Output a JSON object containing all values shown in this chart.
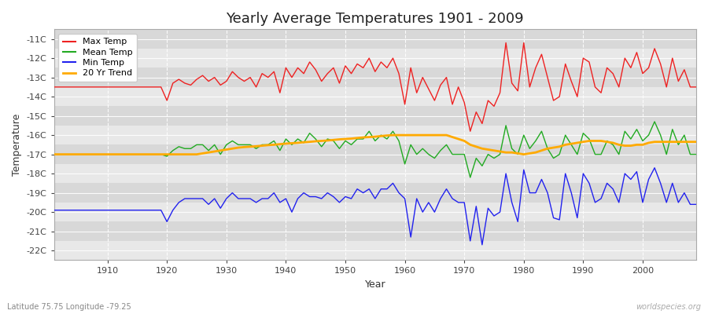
{
  "title": "Yearly Average Temperatures 1901 - 2009",
  "xlabel": "Year",
  "ylabel": "Temperature",
  "lat_lon_text": "Latitude 75.75 Longitude -79.25",
  "watermark": "worldspecies.org",
  "ylim": [
    -22.5,
    -10.5
  ],
  "yticks": [
    -22,
    -21,
    -20,
    -19,
    -18,
    -17,
    -16,
    -15,
    -14,
    -13,
    -12,
    -11
  ],
  "ytick_labels": [
    "-22C",
    "-21C",
    "-20C",
    "-19C",
    "-18C",
    "-17C",
    "-16C",
    "-15C",
    "-14C",
    "-13C",
    "-12C",
    "-11C"
  ],
  "xlim": [
    1901,
    2009
  ],
  "band_colors": [
    "#e8e8e8",
    "#d8d8d8"
  ],
  "line_colors": {
    "max": "#ee2222",
    "mean": "#22aa22",
    "min": "#2222ee",
    "trend": "#ffaa00"
  },
  "legend_labels": [
    "Max Temp",
    "Mean Temp",
    "Min Temp",
    "20 Yr Trend"
  ],
  "years": [
    1901,
    1902,
    1903,
    1904,
    1905,
    1906,
    1907,
    1908,
    1909,
    1910,
    1911,
    1912,
    1913,
    1914,
    1915,
    1916,
    1917,
    1918,
    1919,
    1920,
    1921,
    1922,
    1923,
    1924,
    1925,
    1926,
    1927,
    1928,
    1929,
    1930,
    1931,
    1932,
    1933,
    1934,
    1935,
    1936,
    1937,
    1938,
    1939,
    1940,
    1941,
    1942,
    1943,
    1944,
    1945,
    1946,
    1947,
    1948,
    1949,
    1950,
    1951,
    1952,
    1953,
    1954,
    1955,
    1956,
    1957,
    1958,
    1959,
    1960,
    1961,
    1962,
    1963,
    1964,
    1965,
    1966,
    1967,
    1968,
    1969,
    1970,
    1971,
    1972,
    1973,
    1974,
    1975,
    1976,
    1977,
    1978,
    1979,
    1980,
    1981,
    1982,
    1983,
    1984,
    1985,
    1986,
    1987,
    1988,
    1989,
    1990,
    1991,
    1992,
    1993,
    1994,
    1995,
    1996,
    1997,
    1998,
    1999,
    2000,
    2001,
    2002,
    2003,
    2004,
    2005,
    2006,
    2007,
    2008,
    2009
  ],
  "max_temp": [
    -13.5,
    -13.5,
    -13.5,
    -13.5,
    -13.5,
    -13.5,
    -13.5,
    -13.5,
    -13.5,
    -13.5,
    -13.5,
    -13.5,
    -13.5,
    -13.5,
    -13.5,
    -13.5,
    -13.5,
    -13.5,
    -13.5,
    -14.2,
    -13.3,
    -13.1,
    -13.3,
    -13.4,
    -13.1,
    -12.9,
    -13.2,
    -13.0,
    -13.4,
    -13.2,
    -12.7,
    -13.0,
    -13.2,
    -13.0,
    -13.5,
    -12.8,
    -13.0,
    -12.7,
    -13.8,
    -12.5,
    -13.0,
    -12.5,
    -12.8,
    -12.2,
    -12.6,
    -13.2,
    -12.8,
    -12.5,
    -13.3,
    -12.4,
    -12.8,
    -12.3,
    -12.5,
    -12.0,
    -12.7,
    -12.2,
    -12.5,
    -12.0,
    -12.8,
    -14.4,
    -12.5,
    -13.8,
    -13.0,
    -13.6,
    -14.2,
    -13.4,
    -13.0,
    -14.4,
    -13.5,
    -14.3,
    -15.8,
    -14.8,
    -15.4,
    -14.2,
    -14.5,
    -13.8,
    -11.2,
    -13.3,
    -13.7,
    -11.2,
    -13.5,
    -12.5,
    -11.8,
    -13.0,
    -14.2,
    -14.0,
    -12.3,
    -13.2,
    -14.0,
    -12.0,
    -12.2,
    -13.5,
    -13.8,
    -12.5,
    -12.8,
    -13.5,
    -12.0,
    -12.5,
    -11.7,
    -12.8,
    -12.5,
    -11.5,
    -12.3,
    -13.5,
    -12.0,
    -13.2,
    -12.6,
    -13.5,
    -13.5
  ],
  "mean_temp": [
    -17.0,
    -17.0,
    -17.0,
    -17.0,
    -17.0,
    -17.0,
    -17.0,
    -17.0,
    -17.0,
    -17.0,
    -17.0,
    -17.0,
    -17.0,
    -17.0,
    -17.0,
    -17.0,
    -17.0,
    -17.0,
    -17.0,
    -17.1,
    -16.8,
    -16.6,
    -16.7,
    -16.7,
    -16.5,
    -16.5,
    -16.8,
    -16.5,
    -17.0,
    -16.5,
    -16.3,
    -16.5,
    -16.5,
    -16.5,
    -16.7,
    -16.5,
    -16.5,
    -16.3,
    -16.8,
    -16.2,
    -16.5,
    -16.2,
    -16.4,
    -15.9,
    -16.2,
    -16.6,
    -16.2,
    -16.3,
    -16.7,
    -16.3,
    -16.5,
    -16.2,
    -16.2,
    -15.8,
    -16.3,
    -16.0,
    -16.2,
    -15.8,
    -16.3,
    -17.5,
    -16.5,
    -17.0,
    -16.7,
    -17.0,
    -17.2,
    -16.8,
    -16.5,
    -17.0,
    -17.0,
    -17.0,
    -18.2,
    -17.2,
    -17.6,
    -17.0,
    -17.2,
    -17.0,
    -15.5,
    -16.7,
    -17.0,
    -16.0,
    -16.7,
    -16.3,
    -15.8,
    -16.7,
    -17.2,
    -17.0,
    -16.0,
    -16.5,
    -17.0,
    -15.9,
    -16.2,
    -17.0,
    -17.0,
    -16.3,
    -16.5,
    -17.0,
    -15.8,
    -16.2,
    -15.7,
    -16.3,
    -16.0,
    -15.3,
    -16.0,
    -17.0,
    -15.7,
    -16.5,
    -16.0,
    -17.0,
    -17.0
  ],
  "min_temp": [
    -19.9,
    -19.9,
    -19.9,
    -19.9,
    -19.9,
    -19.9,
    -19.9,
    -19.9,
    -19.9,
    -19.9,
    -19.9,
    -19.9,
    -19.9,
    -19.9,
    -19.9,
    -19.9,
    -19.9,
    -19.9,
    -19.9,
    -20.5,
    -19.9,
    -19.5,
    -19.3,
    -19.3,
    -19.3,
    -19.3,
    -19.6,
    -19.3,
    -19.8,
    -19.3,
    -19.0,
    -19.3,
    -19.3,
    -19.3,
    -19.5,
    -19.3,
    -19.3,
    -19.0,
    -19.5,
    -19.3,
    -20.0,
    -19.3,
    -19.0,
    -19.2,
    -19.2,
    -19.3,
    -19.0,
    -19.2,
    -19.5,
    -19.2,
    -19.3,
    -18.8,
    -19.0,
    -18.8,
    -19.3,
    -18.8,
    -18.8,
    -18.5,
    -19.0,
    -19.3,
    -21.3,
    -19.3,
    -20.0,
    -19.5,
    -20.0,
    -19.3,
    -18.8,
    -19.3,
    -19.5,
    -19.5,
    -21.5,
    -19.7,
    -21.7,
    -19.8,
    -20.2,
    -20.0,
    -18.0,
    -19.5,
    -20.5,
    -17.8,
    -19.0,
    -19.0,
    -18.3,
    -19.0,
    -20.3,
    -20.4,
    -18.0,
    -19.0,
    -20.3,
    -18.0,
    -18.5,
    -19.5,
    -19.3,
    -18.5,
    -18.8,
    -19.5,
    -18.0,
    -18.3,
    -17.9,
    -19.5,
    -18.3,
    -17.7,
    -18.5,
    -19.5,
    -18.5,
    -19.5,
    -19.0,
    -19.6,
    -19.6
  ],
  "trend": [
    -17.0,
    -17.0,
    -17.0,
    -17.0,
    -17.0,
    -17.0,
    -17.0,
    -17.0,
    -17.0,
    -17.0,
    -17.0,
    -17.0,
    -17.0,
    -17.0,
    -17.0,
    -17.0,
    -17.0,
    -17.0,
    -17.0,
    -17.0,
    -17.0,
    -17.0,
    -17.0,
    -17.0,
    -17.0,
    -16.95,
    -16.9,
    -16.85,
    -16.8,
    -16.75,
    -16.7,
    -16.65,
    -16.62,
    -16.6,
    -16.58,
    -16.55,
    -16.52,
    -16.5,
    -16.47,
    -16.44,
    -16.42,
    -16.4,
    -16.37,
    -16.35,
    -16.32,
    -16.3,
    -16.28,
    -16.25,
    -16.22,
    -16.2,
    -16.18,
    -16.15,
    -16.12,
    -16.1,
    -16.08,
    -16.05,
    -16.02,
    -16.0,
    -16.0,
    -16.0,
    -16.0,
    -16.0,
    -16.0,
    -16.0,
    -16.0,
    -16.0,
    -16.0,
    -16.1,
    -16.2,
    -16.3,
    -16.5,
    -16.6,
    -16.7,
    -16.75,
    -16.8,
    -16.85,
    -16.9,
    -16.9,
    -16.95,
    -17.0,
    -16.95,
    -16.9,
    -16.8,
    -16.7,
    -16.65,
    -16.6,
    -16.5,
    -16.45,
    -16.4,
    -16.35,
    -16.3,
    -16.3,
    -16.3,
    -16.35,
    -16.4,
    -16.5,
    -16.55,
    -16.55,
    -16.5,
    -16.5,
    -16.4,
    -16.35,
    -16.35,
    -16.35,
    -16.35,
    -16.35,
    -16.35,
    -16.35,
    -16.35
  ]
}
